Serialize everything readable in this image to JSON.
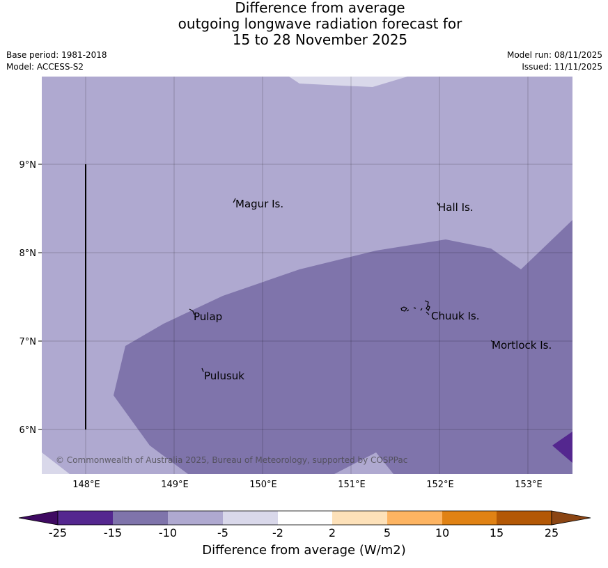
{
  "title": {
    "line1": "Difference from average",
    "line2": "outgoing longwave radiation forecast for",
    "line3": "15 to 28 November 2025"
  },
  "meta": {
    "base_period": "Base period: 1981-2018",
    "model": "Model: ACCESS-S2",
    "model_run": "Model run: 08/11/2025",
    "issued": "Issued: 11/11/2025"
  },
  "map": {
    "lon_ticks": [
      "148°E",
      "149°E",
      "150°E",
      "151°E",
      "152°E",
      "153°E"
    ],
    "lat_ticks": [
      "9°N",
      "8°N",
      "7°N",
      "6°N"
    ],
    "places": [
      {
        "name": "Magur Is."
      },
      {
        "name": "Hall Is."
      },
      {
        "name": "Pulap"
      },
      {
        "name": "Chuuk Is."
      },
      {
        "name": "Mortlock Is."
      },
      {
        "name": "Pulusuk"
      }
    ],
    "copyright": "© Commonwealth of Australia 2025, Bureau of Meteorology, supported by COSPPac"
  },
  "colorbar": {
    "title": "Difference from average (W/m2)",
    "tick_labels": [
      "-25",
      "-15",
      "-10",
      "-5",
      "-2",
      "2",
      "5",
      "10",
      "15",
      "25"
    ],
    "colors": {
      "below_-25": "#3f0a62",
      "-25_-15": "#54278f",
      "-15_-10": "#7f74ab",
      "-10_-5": "#afa9d0",
      "-5_-2": "#d9d8ea",
      "-2_2": "#ffffff",
      "2_5": "#fde1b9",
      "5_10": "#fdb462",
      "10_15": "#e08214",
      "15_25": "#b35806",
      "above_25": "#8b4513"
    }
  }
}
